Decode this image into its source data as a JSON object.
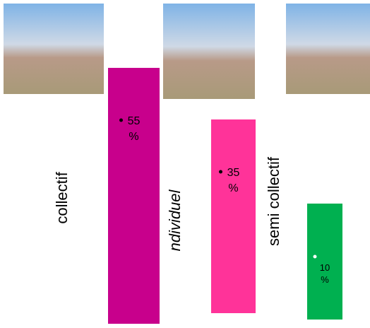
{
  "chart_data": {
    "type": "bar",
    "categories": [
      "collectif",
      "ndividuel",
      "semi collectif"
    ],
    "values": [
      55,
      35,
      10
    ],
    "value_labels": [
      "55 %",
      "35 %",
      "10 %"
    ],
    "colors": [
      "#c8008c",
      "#ff3399",
      "#00b050"
    ]
  }
}
